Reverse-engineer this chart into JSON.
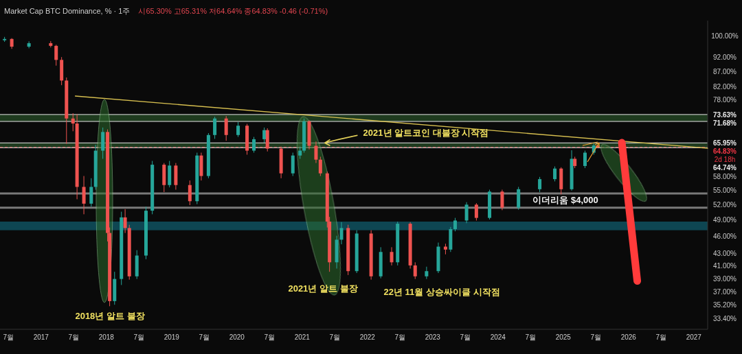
{
  "chart_data": {
    "type": "candlestick",
    "title": "Market Cap BTC Dominance, % · 1주",
    "subtitle": "시65.30% 고65.31% 저64.64% 종64.83% -0.46 (-0.71%)",
    "log": "y",
    "grid": false,
    "xlim": [
      "2016-05-15",
      "2027-03-18"
    ],
    "ylim": [
      32,
      106
    ],
    "xticks": [
      {
        "value": "2016-07-01",
        "label": "7월"
      },
      {
        "value": "2017-01-01",
        "label": "2017"
      },
      {
        "value": "2017-07-01",
        "label": "7월"
      },
      {
        "value": "2018-01-01",
        "label": "2018"
      },
      {
        "value": "2018-07-01",
        "label": "7월"
      },
      {
        "value": "2019-01-01",
        "label": "2019"
      },
      {
        "value": "2019-07-01",
        "label": "7월"
      },
      {
        "value": "2020-01-01",
        "label": "2020"
      },
      {
        "value": "2020-07-01",
        "label": "7월"
      },
      {
        "value": "2021-01-01",
        "label": "2021"
      },
      {
        "value": "2021-07-01",
        "label": "7월"
      },
      {
        "value": "2022-01-01",
        "label": "2022"
      },
      {
        "value": "2022-07-01",
        "label": "7월"
      },
      {
        "value": "2023-01-01",
        "label": "2023"
      },
      {
        "value": "2023-07-01",
        "label": "7월"
      },
      {
        "value": "2024-01-01",
        "label": "2024"
      },
      {
        "value": "2024-07-01",
        "label": "7월"
      },
      {
        "value": "2025-01-01",
        "label": "2025"
      },
      {
        "value": "2025-07-01",
        "label": "7월"
      },
      {
        "value": "2026-01-01",
        "label": "2026"
      },
      {
        "value": "2026-07-01",
        "label": "7월"
      },
      {
        "value": "2027-01-01",
        "label": "2027"
      }
    ],
    "yticks": [
      {
        "value": 100,
        "label": "100.00%"
      },
      {
        "value": 92,
        "label": "92.00%"
      },
      {
        "value": 87,
        "label": "87.00%"
      },
      {
        "value": 82,
        "label": "82.00%"
      },
      {
        "value": 78,
        "label": "78.00%"
      },
      {
        "value": 58,
        "label": "58.00%"
      },
      {
        "value": 55,
        "label": "55.00%"
      },
      {
        "value": 52,
        "label": "52.00%"
      },
      {
        "value": 49,
        "label": "49.00%"
      },
      {
        "value": 46,
        "label": "46.00%"
      },
      {
        "value": 43,
        "label": "43.00%"
      },
      {
        "value": 41,
        "label": "41.00%"
      },
      {
        "value": 39,
        "label": "39.00%"
      },
      {
        "value": 37,
        "label": "37.00%"
      },
      {
        "value": 35.2,
        "label": "35.20%"
      },
      {
        "value": 33.4,
        "label": "33.40%"
      }
    ],
    "bands": [
      {
        "axis": "y",
        "from": 71.68,
        "to": 73.63,
        "color": "#1f3b1f"
      },
      {
        "axis": "y",
        "from": 64.74,
        "to": 65.95,
        "color": "#1f3b1f"
      },
      {
        "axis": "y",
        "from": 47.0,
        "to": 48.6,
        "color": "#0e4652"
      }
    ],
    "ref_lines": [
      {
        "axis": "y",
        "value": 73.63,
        "label": "73.63%",
        "color": "#e8e8e8"
      },
      {
        "axis": "y",
        "value": 71.68,
        "label": "71.68%",
        "color": "#e8e8e8"
      },
      {
        "axis": "y",
        "value": 65.95,
        "label": "65.95%",
        "color": "#e8e8e8"
      },
      {
        "axis": "y",
        "value": 64.83,
        "label": "64.83%",
        "color": "#f23645",
        "line_style": "dashed"
      },
      {
        "axis": "y",
        "value": 64.74,
        "label": "64.74%",
        "color": "#e8e8e8"
      },
      {
        "axis": "y",
        "value": 54.2,
        "color": "#7a7a7a"
      },
      {
        "axis": "y",
        "value": 51.3,
        "color": "#7a7a7a"
      }
    ],
    "annotations": [
      "2d 18h",
      {
        "text": "2021년 알트코인 대불장 시작점",
        "x": "2021-05-05",
        "y": 65.95
      },
      "이더리움 $4,000",
      "2018년 알트 불장",
      "2021년 알트 불장",
      "22년 11월 상승싸이클 시작점"
    ],
    "series": [
      {
        "x": [
          "2016-06-10",
          "2016-07-20",
          "2016-10-25",
          "2017-02-25",
          "2017-03-25",
          "2017-04-25",
          "2017-05-22",
          "2017-06-28",
          "2017-07-20",
          "2017-08-28",
          "2017-10-08",
          "2017-11-02",
          "2017-12-12",
          "2018-01-08",
          "2018-01-20",
          "2018-02-17",
          "2018-03-25",
          "2018-04-15",
          "2018-05-08",
          "2018-06-20",
          "2018-08-10",
          "2018-09-15",
          "2018-11-20",
          "2018-12-20",
          "2019-01-25",
          "2019-04-12",
          "2019-05-22",
          "2019-06-15",
          "2019-07-25",
          "2019-08-30",
          "2019-11-02",
          "2020-01-08",
          "2020-02-28",
          "2020-04-05",
          "2020-06-02",
          "2020-06-20",
          "2020-09-05",
          "2020-11-10",
          "2020-12-20",
          "2021-01-12",
          "2021-02-10",
          "2021-03-18",
          "2021-04-12",
          "2021-05-20",
          "2021-06-02",
          "2021-07-12",
          "2021-08-08",
          "2021-09-15",
          "2021-11-02",
          "2022-01-22",
          "2022-03-15",
          "2022-05-15",
          "2022-06-18",
          "2022-08-28",
          "2022-09-25",
          "2022-11-28",
          "2023-02-02",
          "2023-03-12",
          "2023-04-10",
          "2023-05-05",
          "2023-07-08",
          "2023-09-02",
          "2023-11-15",
          "2024-01-25",
          "2024-04-25",
          "2024-08-22",
          "2024-11-15",
          "2024-12-20",
          "2025-02-18",
          "2025-03-05",
          "2025-05-01",
          "2025-06-20",
          "2025-07-11"
        ],
        "ohlc": [
          [
            98.2,
            99.5,
            97.6,
            98.7
          ],
          [
            98.7,
            99.0,
            95.0,
            95.8
          ],
          [
            95.8,
            97.8,
            95.2,
            97.1
          ],
          [
            97.1,
            97.9,
            95.5,
            96.1
          ],
          [
            96.1,
            96.5,
            89.0,
            91.0
          ],
          [
            91.0,
            92.0,
            82.5,
            84.0
          ],
          [
            84.0,
            85.0,
            65.7,
            72.5
          ],
          [
            72.5,
            74.0,
            69.0,
            71.1
          ],
          [
            71.1,
            73.7,
            53.0,
            55.6
          ],
          [
            55.6,
            58.0,
            50.0,
            52.1
          ],
          [
            52.1,
            57.5,
            51.5,
            55.6
          ],
          [
            55.6,
            65.5,
            55.0,
            64.0
          ],
          [
            64.0,
            70.0,
            62.0,
            68.8
          ],
          [
            68.8,
            69.5,
            45.0,
            46.5
          ],
          [
            46.5,
            47.5,
            35.0,
            35.7
          ],
          [
            35.7,
            40.0,
            35.2,
            38.9
          ],
          [
            38.9,
            50.5,
            38.0,
            49.4
          ],
          [
            49.4,
            51.0,
            46.5,
            47.4
          ],
          [
            47.4,
            48.0,
            38.8,
            39.3
          ],
          [
            39.3,
            43.5,
            38.9,
            42.6
          ],
          [
            42.6,
            51.5,
            42.0,
            50.7
          ],
          [
            50.7,
            61.5,
            50.0,
            60.6
          ],
          [
            60.6,
            61.0,
            54.5,
            56.0
          ],
          [
            56.0,
            61.5,
            55.5,
            60.4
          ],
          [
            60.4,
            61.0,
            55.0,
            56.0
          ],
          [
            56.0,
            57.0,
            51.8,
            52.6
          ],
          [
            52.6,
            63.5,
            52.0,
            62.8
          ],
          [
            62.8,
            63.5,
            57.0,
            58.0
          ],
          [
            58.0,
            68.5,
            57.5,
            68.0
          ],
          [
            68.0,
            73.0,
            67.0,
            72.5
          ],
          [
            72.5,
            73.2,
            66.5,
            68.0
          ],
          [
            68.0,
            71.5,
            67.5,
            70.5
          ],
          [
            70.5,
            71.0,
            63.0,
            64.0
          ],
          [
            64.0,
            67.5,
            63.5,
            66.9
          ],
          [
            66.9,
            70.0,
            66.0,
            69.3
          ],
          [
            69.3,
            69.8,
            63.8,
            64.5
          ],
          [
            64.5,
            65.0,
            57.5,
            58.6
          ],
          [
            58.6,
            63.5,
            58.0,
            62.8
          ],
          [
            62.8,
            65.0,
            62.0,
            64.0
          ],
          [
            64.0,
            72.5,
            63.5,
            71.7
          ],
          [
            71.7,
            72.0,
            64.3,
            65.2
          ],
          [
            65.2,
            66.3,
            61.0,
            61.8
          ],
          [
            61.8,
            62.5,
            58.0,
            58.6
          ],
          [
            58.6,
            59.0,
            47.5,
            48.6
          ],
          [
            48.6,
            49.5,
            40.0,
            41.5
          ],
          [
            41.5,
            46.0,
            40.5,
            45.3
          ],
          [
            45.3,
            48.5,
            44.5,
            47.4
          ],
          [
            47.4,
            48.0,
            39.5,
            40.1
          ],
          [
            40.1,
            47.0,
            39.8,
            46.4
          ],
          [
            46.4,
            47.0,
            38.8,
            39.3
          ],
          [
            39.3,
            44.0,
            39.0,
            43.2
          ],
          [
            43.2,
            44.0,
            41.0,
            41.5
          ],
          [
            41.5,
            48.6,
            41.0,
            48.2
          ],
          [
            48.2,
            48.5,
            40.5,
            41.0
          ],
          [
            41.0,
            41.5,
            38.9,
            39.3
          ],
          [
            39.3,
            40.8,
            38.9,
            40.1
          ],
          [
            40.1,
            44.8,
            39.8,
            44.1
          ],
          [
            44.1,
            44.6,
            42.8,
            43.6
          ],
          [
            43.6,
            47.6,
            43.2,
            47.2
          ],
          [
            47.2,
            49.3,
            46.8,
            48.8
          ],
          [
            48.8,
            52.4,
            48.3,
            51.9
          ],
          [
            51.9,
            52.2,
            48.8,
            49.3
          ],
          [
            49.3,
            55.0,
            49.0,
            54.6
          ],
          [
            54.6,
            55.0,
            50.8,
            51.3
          ],
          [
            51.3,
            55.6,
            50.9,
            55.1
          ],
          [
            55.1,
            57.8,
            54.5,
            57.3
          ],
          [
            57.3,
            60.2,
            56.8,
            59.7
          ],
          [
            59.7,
            60.0,
            54.0,
            55.1
          ],
          [
            55.1,
            64.1,
            54.8,
            62.0
          ],
          [
            62.0,
            62.5,
            59.8,
            60.3
          ],
          [
            60.3,
            64.0,
            59.8,
            63.5
          ],
          [
            63.5,
            66.1,
            63.0,
            65.3
          ],
          [
            65.3,
            65.31,
            64.64,
            64.83
          ]
        ]
      },
      {
        "type": "line",
        "color": "#d8c050",
        "x": [
          "2017-07-10",
          "2027-03-18"
        ],
        "values": [
          79.1,
          64.6
        ]
      },
      {
        "type": "line",
        "color": "#ff3b3b",
        "x": [
          "2025-11-25",
          "2026-02-20"
        ],
        "values": [
          66.0,
          38.6
        ]
      }
    ]
  }
}
